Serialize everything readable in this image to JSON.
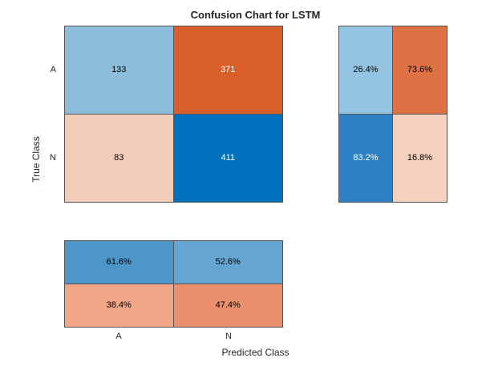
{
  "title": "Confusion Chart for LSTM",
  "axes": {
    "xlabel": "Predicted Class",
    "ylabel": "True Class",
    "x_ticks": [
      "A",
      "N"
    ],
    "y_ticks": [
      "A",
      "N"
    ]
  },
  "chart_data": {
    "type": "heatmap",
    "title": "Confusion Chart for LSTM",
    "xlabel": "Predicted Class",
    "ylabel": "True Class",
    "classes": [
      "A",
      "N"
    ],
    "matrix": [
      [
        133,
        371
      ],
      [
        83,
        411
      ]
    ],
    "row_summary_pct": [
      [
        26.4,
        73.6
      ],
      [
        83.2,
        16.8
      ]
    ],
    "column_summary_pct": [
      [
        61.6,
        52.6
      ],
      [
        38.4,
        47.4
      ]
    ],
    "layout": {
      "row_summary_position": "right",
      "column_summary_position": "bottom",
      "colormap_diagonal": "#0072BD",
      "colormap_offdiagonal": "#D95319",
      "border_color": "#545454",
      "background": "#FFFFFF"
    }
  },
  "cells": {
    "main": [
      {
        "text": "133",
        "bg": "#8CBEDC",
        "fg": "#000000"
      },
      {
        "text": "371",
        "bg": "#D95F2A",
        "fg": "#FFFFFF"
      },
      {
        "text": "83",
        "bg": "#F3CDB9",
        "fg": "#000000"
      },
      {
        "text": "411",
        "bg": "#0072BD",
        "fg": "#FFFFFF"
      }
    ],
    "row_summary": [
      {
        "text": "26.4%",
        "bg": "#93C4E1",
        "fg": "#000000"
      },
      {
        "text": "73.6%",
        "bg": "#DF7244",
        "fg": "#000000"
      },
      {
        "text": "83.2%",
        "bg": "#2E81C4",
        "fg": "#FFFFFF"
      },
      {
        "text": "16.8%",
        "bg": "#F4D1BF",
        "fg": "#000000"
      }
    ],
    "col_summary": [
      {
        "text": "61.6%",
        "bg": "#4D96C9",
        "fg": "#000000"
      },
      {
        "text": "52.6%",
        "bg": "#64A5D2",
        "fg": "#000000"
      },
      {
        "text": "38.4%",
        "bg": "#F1A687",
        "fg": "#000000"
      },
      {
        "text": "47.4%",
        "bg": "#EA906C",
        "fg": "#000000"
      }
    ]
  }
}
